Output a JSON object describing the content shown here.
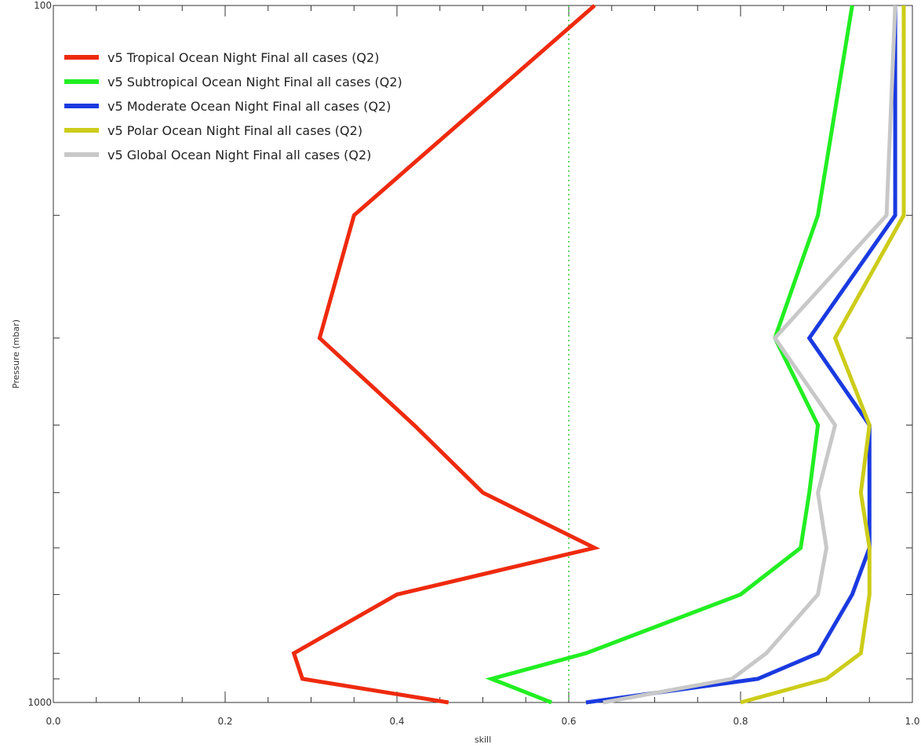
{
  "chart_data": {
    "type": "line",
    "title": "",
    "xlabel": "skill",
    "ylabel": "Pressure (mbar)",
    "xlim": [
      0.0,
      1.0
    ],
    "ylim": [
      1000,
      100
    ],
    "y_scale": "log",
    "x_tick_labels": [
      "0.0",
      "0.2",
      "0.4",
      "0.6",
      "0.8",
      "1.0"
    ],
    "y_tick_labels": [
      "100",
      "1000"
    ],
    "reference_line": {
      "x": 0.6,
      "style": "dotted",
      "color": "#33cc33"
    },
    "grid": false,
    "legend_position": "top-left",
    "series": [
      {
        "name": "v5 Tropical Ocean Night Final all cases (Q2)",
        "color": "#ee2a0e",
        "points": [
          [
            0.63,
            100
          ],
          [
            0.35,
            200
          ],
          [
            0.31,
            300
          ],
          [
            0.42,
            400
          ],
          [
            0.5,
            500
          ],
          [
            0.63,
            600
          ],
          [
            0.4,
            700
          ],
          [
            0.28,
            850
          ],
          [
            0.29,
            925
          ],
          [
            0.46,
            1000
          ]
        ]
      },
      {
        "name": "v5 Subtropical Ocean Night Final all cases (Q2)",
        "color": "#22ee22",
        "points": [
          [
            0.93,
            100
          ],
          [
            0.89,
            200
          ],
          [
            0.84,
            300
          ],
          [
            0.89,
            400
          ],
          [
            0.88,
            500
          ],
          [
            0.87,
            600
          ],
          [
            0.8,
            700
          ],
          [
            0.62,
            850
          ],
          [
            0.51,
            925
          ],
          [
            0.58,
            1000
          ]
        ]
      },
      {
        "name": "v5 Moderate Ocean Night Final all cases (Q2)",
        "color": "#1a3ae0",
        "points": [
          [
            0.98,
            100
          ],
          [
            0.98,
            200
          ],
          [
            0.88,
            300
          ],
          [
            0.95,
            400
          ],
          [
            0.95,
            500
          ],
          [
            0.95,
            600
          ],
          [
            0.93,
            700
          ],
          [
            0.89,
            850
          ],
          [
            0.82,
            925
          ],
          [
            0.62,
            1000
          ]
        ]
      },
      {
        "name": "v5 Polar Ocean Night Final all cases (Q2)",
        "color": "#cccc1a",
        "points": [
          [
            0.99,
            100
          ],
          [
            0.99,
            200
          ],
          [
            0.91,
            300
          ],
          [
            0.95,
            400
          ],
          [
            0.94,
            500
          ],
          [
            0.95,
            600
          ],
          [
            0.95,
            700
          ],
          [
            0.94,
            850
          ],
          [
            0.9,
            925
          ],
          [
            0.8,
            1000
          ]
        ]
      },
      {
        "name": "v5 Global Ocean Night Final all cases (Q2)",
        "color": "#c8c8c8",
        "points": [
          [
            0.98,
            100
          ],
          [
            0.97,
            200
          ],
          [
            0.84,
            300
          ],
          [
            0.91,
            400
          ],
          [
            0.89,
            500
          ],
          [
            0.9,
            600
          ],
          [
            0.89,
            700
          ],
          [
            0.83,
            850
          ],
          [
            0.79,
            925
          ],
          [
            0.64,
            1000
          ]
        ]
      }
    ]
  }
}
